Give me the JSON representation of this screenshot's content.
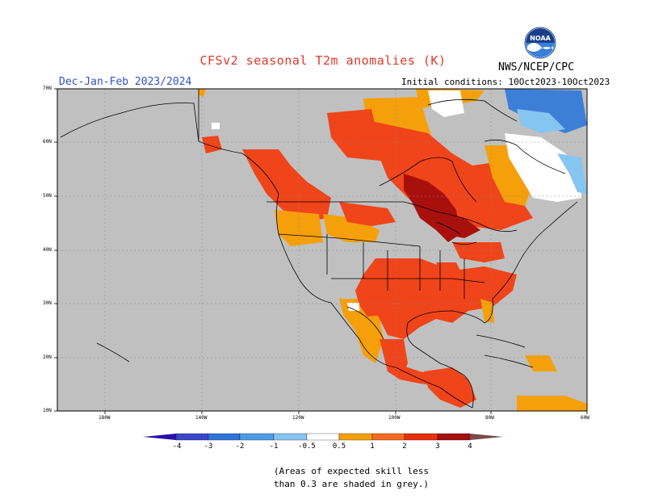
{
  "title": "CFSv2 seasonal T2m anomalies (K)",
  "period": "Dec-Jan-Feb 2023/2024",
  "initial_conditions": "Initial conditions: 10Oct2023-10Oct2023",
  "agency": "NWS/NCEP/CPC",
  "logo_text": "NOAA",
  "lat_labels": [
    "70N",
    "60N",
    "50N",
    "40N",
    "30N",
    "20N",
    "10N"
  ],
  "lon_labels": [
    "180W",
    "140W",
    "120W",
    "100W",
    "80W",
    "60W"
  ],
  "colorbar": {
    "labels": [
      "-4",
      "-3",
      "-2",
      "-1",
      "-0.5",
      "0.5",
      "1",
      "2",
      "3",
      "4"
    ],
    "colors": [
      "#2a10a8",
      "#3c46c8",
      "#2f73d8",
      "#4d9be6",
      "#86c4f2",
      "#ffffff",
      "#f5a00a",
      "#f56a1e",
      "#e8300f",
      "#a50f0f",
      "#c8a090",
      "#7a4a4a"
    ]
  },
  "note": [
    "(Areas of expected skill less",
    "than 0.3 are shaded in grey.)"
  ],
  "map_colors": {
    "land_grey": "#c0c0c0",
    "ocean_grey": "#c0c0c0",
    "orange": "#f5a00a",
    "red_orange": "#f0441a",
    "dark_red": "#a8100e",
    "white": "#ffffff",
    "light_blue": "#86c4f2",
    "blue": "#3d7ed8"
  }
}
